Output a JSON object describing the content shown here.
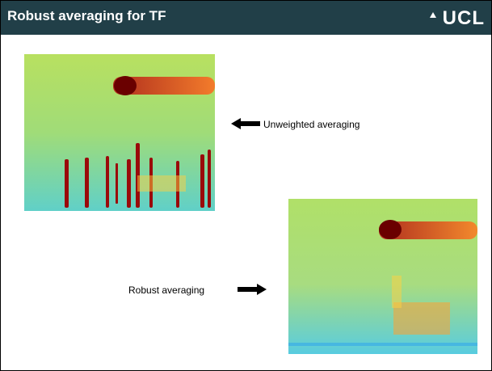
{
  "header": {
    "title": "Robust averaging for TF",
    "logo": "UCL"
  },
  "labels": {
    "top": "Unweighted averaging",
    "bottom": "Robust averaging"
  }
}
